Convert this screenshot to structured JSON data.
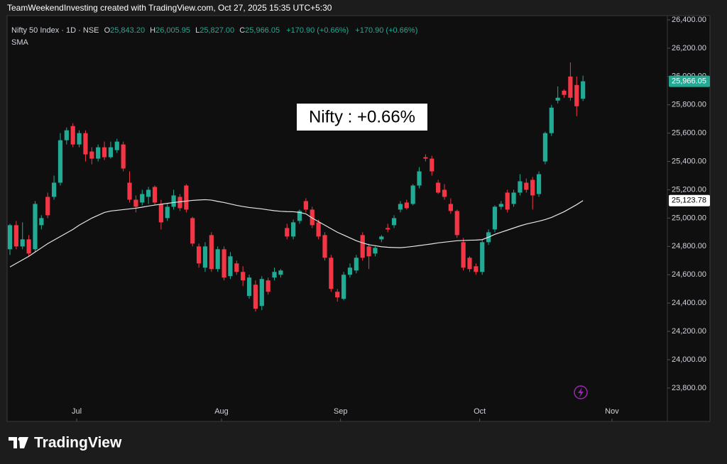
{
  "chart_data": {
    "type": "candlestick",
    "credit": "TeamWeekendInvesting created with TradingView.com, Oct 27, 2025 15:35 UTC+5:30",
    "symbol": "Nifty 50 Index · 1D · NSE",
    "ohlc_labels": {
      "open": "25,843.20",
      "high": "26,005.95",
      "low": "25,827.00",
      "close": "25,966.05",
      "change": "+170.90 (+0.66%)"
    },
    "indicator": "SMA",
    "annotation": "Nifty : +0.66%",
    "watermark": "TradingView",
    "last_price_label": "25,966.05",
    "sma_last_label": "25,123.78",
    "up_color": "#22ab94",
    "down_color": "#f23645",
    "sma_color": "#e6e6e6",
    "open": [
      24780,
      24950,
      24800,
      24850,
      24780,
      24950,
      25150,
      25150,
      25250,
      25550,
      25650,
      25520,
      25600,
      25470,
      25420,
      25500,
      25430,
      25480,
      25520,
      25250,
      25130,
      25110,
      25150,
      25220,
      25100,
      25000,
      25080,
      25150,
      25230,
      25000,
      24800,
      24650,
      24880,
      24640,
      24780,
      24590,
      24680,
      24620,
      24450,
      24530,
      24380,
      24560,
      24580,
      24600,
      24930,
      24870,
      24980,
      25120,
      25060,
      24970,
      24880,
      24720,
      24480,
      24430,
      24600,
      24630,
      24880,
      24800,
      24750,
      24850,
      24930,
      24950,
      25060,
      25110,
      25100,
      25230,
      25430,
      25420,
      25250,
      25200,
      25100,
      25050,
      24830,
      24720,
      24660,
      24620,
      24830,
      24920,
      25080,
      25180,
      25100,
      25180,
      25250,
      25270,
      25170,
      25400,
      25600,
      25830,
      25900,
      26000,
      25940,
      25843.2
    ],
    "high": [
      24960,
      24980,
      24970,
      24880,
      25120,
      25020,
      25180,
      25300,
      25600,
      25640,
      25670,
      25620,
      25620,
      25500,
      25520,
      25540,
      25540,
      25560,
      25540,
      25330,
      25160,
      25200,
      25220,
      25230,
      25130,
      25100,
      25200,
      25170,
      25240,
      25010,
      24820,
      24830,
      24900,
      24800,
      24800,
      24760,
      24700,
      24660,
      24600,
      24560,
      24590,
      24580,
      24650,
      24640,
      24960,
      24990,
      25060,
      25140,
      25080,
      24990,
      24900,
      24740,
      24500,
      24620,
      24680,
      24740,
      24900,
      24820,
      24800,
      24880,
      24960,
      25020,
      25120,
      25130,
      25240,
      25360,
      25450,
      25440,
      25270,
      25240,
      25140,
      25060,
      24860,
      24730,
      24680,
      24850,
      24920,
      25090,
      25120,
      25200,
      25200,
      25310,
      25280,
      25290,
      25330,
      25610,
      25800,
      25930,
      25910,
      26100,
      26000,
      26005.95
    ],
    "low": [
      24740,
      24780,
      24780,
      24730,
      24760,
      24920,
      25000,
      25130,
      25230,
      25520,
      25500,
      25500,
      25400,
      25380,
      25400,
      25410,
      25420,
      25460,
      25330,
      25110,
      25040,
      25090,
      25100,
      25090,
      24920,
      24980,
      25060,
      25050,
      25040,
      24800,
      24650,
      24620,
      24620,
      24620,
      24560,
      24570,
      24600,
      24520,
      24430,
      24340,
      24350,
      24460,
      24560,
      24580,
      24850,
      24850,
      24960,
      25040,
      24930,
      24850,
      24700,
      24480,
      24410,
      24420,
      24580,
      24610,
      24700,
      24640,
      24730,
      24830,
      24900,
      24930,
      25040,
      25060,
      25090,
      25210,
      25400,
      25300,
      25170,
      25130,
      25030,
      24860,
      24630,
      24620,
      24600,
      24600,
      24810,
      24900,
      25060,
      25040,
      25080,
      25160,
      25180,
      25060,
      25150,
      25380,
      25580,
      25810,
      25850,
      25830,
      25720,
      25827
    ],
    "close": [
      24950,
      24800,
      24850,
      24750,
      25100,
      25000,
      25020,
      25250,
      25550,
      25620,
      25520,
      25600,
      25450,
      25420,
      25500,
      25430,
      25500,
      25540,
      25350,
      25130,
      25080,
      25170,
      25200,
      25110,
      24970,
      25080,
      25160,
      25070,
      25060,
      24820,
      24680,
      24800,
      24640,
      24780,
      24580,
      24730,
      24620,
      24560,
      24580,
      24360,
      24570,
      24480,
      24620,
      24630,
      24870,
      24970,
      25050,
      25060,
      24950,
      24870,
      24720,
      24500,
      24440,
      24600,
      24650,
      24720,
      24720,
      24730,
      24790,
      24870,
      24920,
      25000,
      25100,
      25070,
      25230,
      25330,
      25420,
      25330,
      25180,
      25150,
      25050,
      24880,
      24650,
      24640,
      24620,
      24830,
      24900,
      25080,
      25100,
      25060,
      25180,
      25260,
      25200,
      25160,
      25310,
      25600,
      25780,
      25850,
      25870,
      25850,
      25790,
      25966.05
    ],
    "sma": [
      24655,
      24680,
      24705,
      24730,
      24760,
      24790,
      24820,
      24845,
      24870,
      24895,
      24920,
      24950,
      24975,
      25000,
      25020,
      25040,
      25050,
      25055,
      25060,
      25065,
      25070,
      25077,
      25085,
      25092,
      25098,
      25104,
      25110,
      25115,
      25120,
      25125,
      25128,
      25130,
      25127,
      25118,
      25110,
      25100,
      25090,
      25082,
      25075,
      25070,
      25065,
      25058,
      25052,
      25048,
      25046,
      25045,
      25040,
      25030,
      25000,
      24975,
      24950,
      24925,
      24900,
      24880,
      24860,
      24840,
      24825,
      24812,
      24805,
      24798,
      24794,
      24792,
      24791,
      24795,
      24800,
      24806,
      24812,
      24818,
      24825,
      24830,
      24835,
      24840,
      24842,
      24844,
      24845,
      24848,
      24865,
      24885,
      24900,
      24915,
      24930,
      24945,
      24958,
      24968,
      24978,
      24990,
      25005,
      25025,
      25045,
      25070,
      25095,
      25123.78
    ],
    "xlim": [
      -0.45,
      104.4
    ],
    "xticks": [
      {
        "value": 10.6,
        "label": "Jul"
      },
      {
        "value": 33.6,
        "label": "Aug"
      },
      {
        "value": 52.5,
        "label": "Sep"
      },
      {
        "value": 74.6,
        "label": "Oct"
      },
      {
        "value": 95.6,
        "label": "Nov"
      }
    ],
    "ylim": [
      23564,
      26430
    ],
    "yticks": [
      {
        "value": 23800,
        "label": "23,800.00"
      },
      {
        "value": 24000,
        "label": "24,000.00"
      },
      {
        "value": 24200,
        "label": "24,200.00"
      },
      {
        "value": 24400,
        "label": "24,400.00"
      },
      {
        "value": 24600,
        "label": "24,600.00"
      },
      {
        "value": 24800,
        "label": "24,800.00"
      },
      {
        "value": 25000,
        "label": "25,000.00"
      },
      {
        "value": 25200,
        "label": "25,200.00"
      },
      {
        "value": 25400,
        "label": "25,400.00"
      },
      {
        "value": 25600,
        "label": "25,600.00"
      },
      {
        "value": 25800,
        "label": "25,800.00"
      },
      {
        "value": 26000,
        "label": "26,000.00"
      },
      {
        "value": 26200,
        "label": "26,200.00"
      },
      {
        "value": 26400,
        "label": "26,400.00"
      }
    ],
    "grid": false
  }
}
